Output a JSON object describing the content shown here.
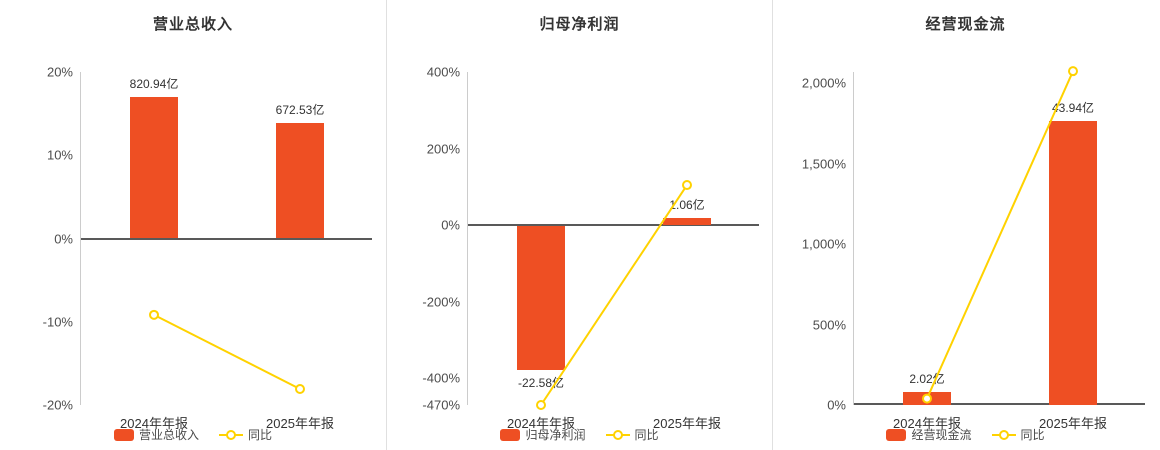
{
  "colors": {
    "bar": "#ee4f23",
    "line": "#ffd200",
    "zero_axis": "#595959",
    "left_axis": "#cccccc",
    "divider": "#e0e0e0",
    "text": "#333333"
  },
  "chart_data": [
    {
      "type": "bar+line",
      "title": "营业总收入",
      "categories": [
        "2024年年报",
        "2025年年报"
      ],
      "bar_series": {
        "name": "营业总收入",
        "unit": "亿",
        "values": [
          820.94,
          672.53
        ],
        "labels": [
          "820.94亿",
          "672.53亿"
        ]
      },
      "line_series": {
        "name": "同比",
        "unit": "%",
        "values": [
          -9.17,
          -18.08
        ]
      },
      "y_axis": {
        "min": -20,
        "max": 20,
        "ticks": [
          20,
          10,
          0,
          -10,
          -20
        ],
        "tick_labels": [
          "20%",
          "10%",
          "0%",
          "-10%",
          "-20%"
        ]
      },
      "bar_plot_pct": [
        17.0,
        13.9
      ],
      "grid": false,
      "legend_position": "bottom",
      "legend": [
        {
          "type": "bar",
          "label": "营业总收入"
        },
        {
          "type": "line",
          "label": "同比"
        }
      ]
    },
    {
      "type": "bar+line",
      "title": "归母净利润",
      "categories": [
        "2024年年报",
        "2025年年报"
      ],
      "bar_series": {
        "name": "归母净利润",
        "unit": "亿",
        "values": [
          -22.58,
          1.06
        ],
        "labels": [
          "-22.58亿",
          "1.06亿"
        ]
      },
      "line_series": {
        "name": "同比",
        "unit": "%",
        "values": [
          -470,
          104.69
        ]
      },
      "y_axis": {
        "min": -470,
        "max": 400,
        "ticks": [
          400,
          200,
          0,
          -200,
          -400,
          -470
        ],
        "tick_labels": [
          "400%",
          "200%",
          "0%",
          "-200%",
          "-400%",
          "-470%"
        ]
      },
      "bar_plot_pct": [
        -376,
        17.6
      ],
      "grid": false,
      "legend_position": "bottom",
      "legend": [
        {
          "type": "bar",
          "label": "归母净利润"
        },
        {
          "type": "line",
          "label": "同比"
        }
      ]
    },
    {
      "type": "bar+line",
      "title": "经营现金流",
      "categories": [
        "2024年年报",
        "2025年年报"
      ],
      "bar_series": {
        "name": "经营现金流",
        "unit": "亿",
        "values": [
          2.02,
          43.94
        ],
        "labels": [
          "2.02亿",
          "43.94亿"
        ]
      },
      "line_series": {
        "name": "同比",
        "unit": "%",
        "values": [
          40,
          2075.2
        ]
      },
      "y_axis": {
        "min": 0,
        "max": 2070,
        "ticks": [
          2000,
          1500,
          1000,
          500,
          0
        ],
        "tick_labels": [
          "2,000%",
          "1,500%",
          "1,000%",
          "500%",
          "0%"
        ]
      },
      "bar_plot_pct": [
        81,
        1765
      ],
      "grid": false,
      "legend_position": "bottom",
      "legend": [
        {
          "type": "bar",
          "label": "经营现金流"
        },
        {
          "type": "line",
          "label": "同比"
        }
      ]
    }
  ]
}
